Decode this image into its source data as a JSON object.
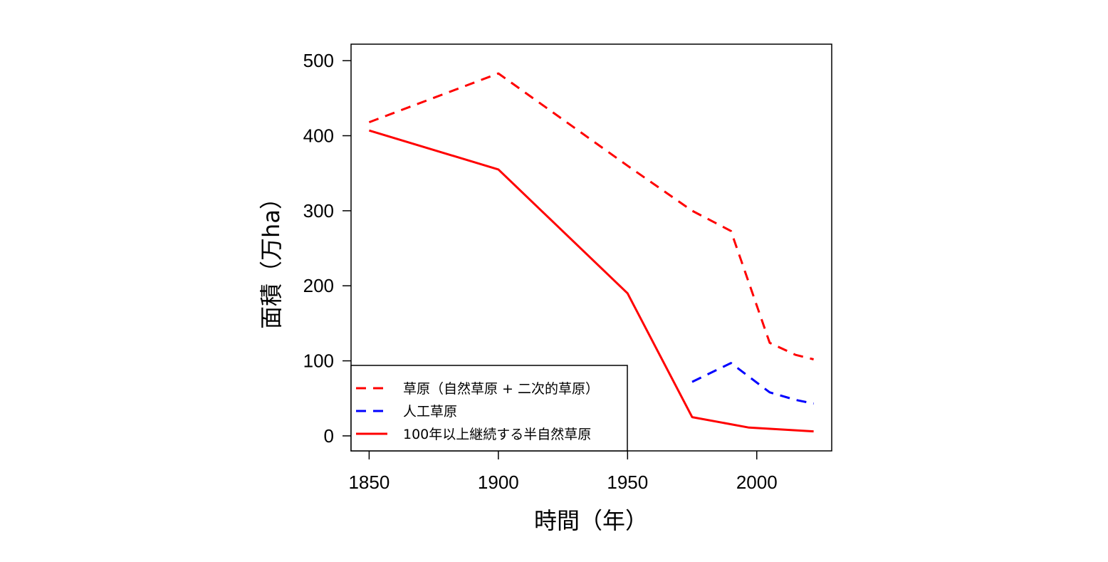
{
  "chart_data": {
    "type": "line",
    "xlabel": "時間（年）",
    "ylabel": "面積（万ha）",
    "xlim": [
      1843,
      2029
    ],
    "ylim": [
      -20,
      522
    ],
    "xticks": [
      1850,
      1900,
      1950,
      2000
    ],
    "yticks": [
      0,
      100,
      200,
      300,
      400,
      500
    ],
    "grid": false,
    "legend_position": "bottom-left",
    "series": [
      {
        "name": "草原（自然草原 + 二次的草原）",
        "color": "#ff0000",
        "line_style": "dashed",
        "x": [
          1850,
          1900,
          1950,
          1975,
          1990,
          2005,
          2015,
          2022
        ],
        "y": [
          418,
          483,
          360,
          300,
          273,
          124,
          108,
          102
        ]
      },
      {
        "name": "人工草原",
        "color": "#0000ff",
        "line_style": "dashed",
        "x": [
          1975,
          1990,
          2005,
          2015,
          2022
        ],
        "y": [
          72,
          97,
          58,
          48,
          43
        ]
      },
      {
        "name": "100年以上継続する半自然草原",
        "color": "#ff0000",
        "line_style": "solid",
        "x": [
          1850,
          1900,
          1950,
          1975,
          1997,
          2022
        ],
        "y": [
          407,
          355,
          190,
          25,
          11,
          6
        ]
      }
    ]
  }
}
